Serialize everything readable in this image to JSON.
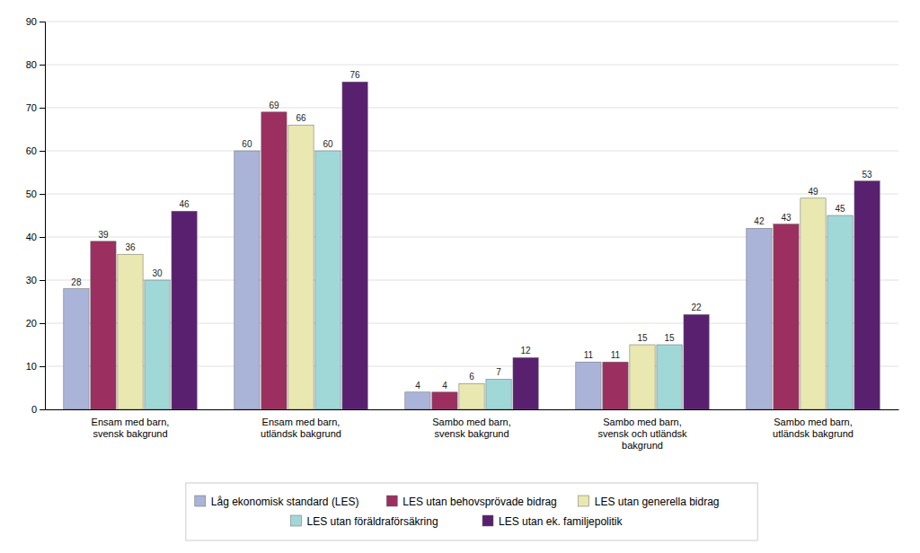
{
  "chart_data": {
    "type": "bar",
    "categories": [
      "Ensam med barn,\nsvensk bakgrund",
      "Ensam med barn,\nutländsk bakgrund",
      "Sambo med barn,\nsvensk bakgrund",
      "Sambo med barn,\nsvensk och utländsk\nbakgrund",
      "Sambo med barn,\nutländsk bakgrund"
    ],
    "series": [
      {
        "name": "Låg ekonomisk standard (LES)",
        "color": "#aab4d8",
        "values": [
          28,
          60,
          4,
          11,
          42
        ]
      },
      {
        "name": "LES utan behovsprövade bidrag",
        "color": "#9b3060",
        "values": [
          39,
          69,
          4,
          11,
          43
        ]
      },
      {
        "name": "LES utan generella bidrag",
        "color": "#e8e8b0",
        "values": [
          36,
          66,
          6,
          15,
          49
        ]
      },
      {
        "name": "LES utan föräldraförsäkring",
        "color": "#a0d8d8",
        "values": [
          30,
          60,
          7,
          15,
          45
        ]
      },
      {
        "name": "LES utan ek. familjepolitik",
        "color": "#5a2070",
        "values": [
          46,
          76,
          12,
          22,
          53
        ]
      }
    ],
    "ylim": [
      0,
      90
    ],
    "yticks": [
      0,
      10,
      20,
      30,
      40,
      50,
      60,
      70,
      80,
      90
    ],
    "grid": true,
    "data_labels": true,
    "legend": "bottom"
  }
}
